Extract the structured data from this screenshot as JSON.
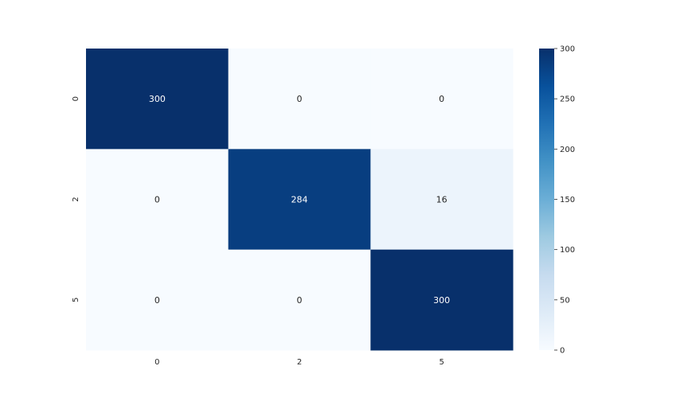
{
  "chart_data": {
    "type": "heatmap",
    "row_labels": [
      "0",
      "2",
      "5"
    ],
    "col_labels": [
      "0",
      "2",
      "5"
    ],
    "values": [
      [
        300,
        0,
        0
      ],
      [
        0,
        284,
        16
      ],
      [
        0,
        0,
        300
      ]
    ],
    "vmin": 0,
    "vmax": 300,
    "colormap": "Blues",
    "colorbar": {
      "ticks": [
        0,
        50,
        100,
        150,
        200,
        250,
        300
      ],
      "tick_labels": [
        "0",
        "50",
        "100",
        "150",
        "200",
        "250",
        "300"
      ]
    },
    "annotation_light_color": "#ffffff",
    "annotation_dark_color": "#262626",
    "title": "",
    "xlabel": "",
    "ylabel": ""
  }
}
